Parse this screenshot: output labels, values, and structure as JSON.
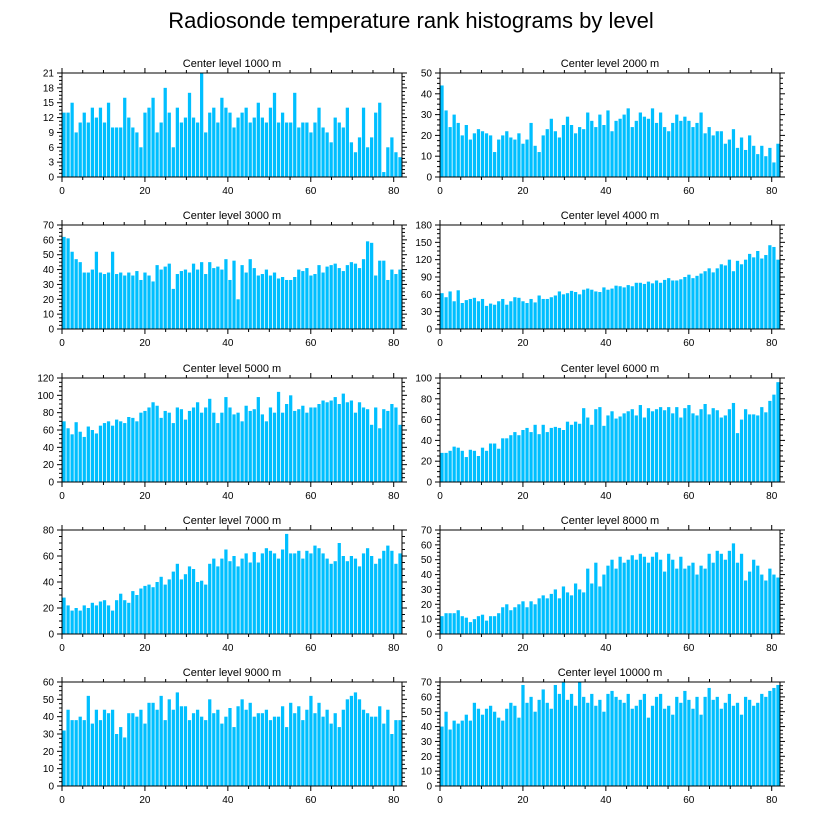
{
  "page_title": "Radiosonde temperature rank histograms by level",
  "colors": {
    "bar": "#00bfff",
    "axis": "#000000",
    "background": "#ffffff"
  },
  "chart_data": [
    {
      "type": "bar",
      "title": "Center level 1000 m",
      "xlabel": "",
      "ylabel": "",
      "xlim": [
        0,
        82
      ],
      "xticks": [
        0,
        20,
        40,
        60,
        80
      ],
      "ylim": [
        0,
        21
      ],
      "yticks": [
        0,
        3,
        6,
        9,
        12,
        15,
        18,
        21
      ],
      "values": [
        13,
        13,
        15,
        9,
        11,
        13,
        11,
        14,
        12,
        14,
        11,
        15,
        10,
        10,
        10,
        16,
        12,
        10,
        9,
        6,
        13,
        14,
        16,
        9,
        11,
        18,
        13,
        6,
        14,
        11,
        12,
        17,
        12,
        11,
        21,
        9,
        13,
        14,
        11,
        16,
        14,
        13,
        10,
        12,
        13,
        14,
        11,
        12,
        15,
        12,
        11,
        14,
        17,
        11,
        13,
        11,
        11,
        17,
        10,
        11,
        11,
        9,
        11,
        14,
        10,
        9,
        7,
        12,
        11,
        10,
        14,
        7,
        5,
        8,
        14,
        6,
        8,
        13,
        15,
        1,
        6,
        8,
        5,
        4
      ]
    },
    {
      "type": "bar",
      "title": "Center level 2000 m",
      "xlabel": "",
      "ylabel": "",
      "xlim": [
        0,
        82
      ],
      "xticks": [
        0,
        20,
        40,
        60,
        80
      ],
      "ylim": [
        0,
        50
      ],
      "yticks": [
        0,
        10,
        20,
        30,
        40,
        50
      ],
      "values": [
        44,
        32,
        24,
        30,
        26,
        20,
        25,
        18,
        21,
        23,
        22,
        21,
        20,
        12,
        18,
        20,
        22,
        19,
        18,
        21,
        16,
        18,
        26,
        15,
        12,
        20,
        23,
        28,
        22,
        19,
        25,
        29,
        25,
        21,
        24,
        23,
        31,
        27,
        24,
        30,
        25,
        32,
        22,
        27,
        28,
        30,
        33,
        24,
        27,
        31,
        29,
        28,
        33,
        26,
        31,
        24,
        22,
        26,
        30,
        27,
        29,
        27,
        24,
        26,
        31,
        21,
        24,
        20,
        22,
        22,
        16,
        18,
        23,
        14,
        19,
        13,
        20,
        15,
        11,
        15,
        10,
        14,
        7,
        16
      ]
    },
    {
      "type": "bar",
      "title": "Center level 3000 m",
      "xlabel": "",
      "ylabel": "",
      "xlim": [
        0,
        82
      ],
      "xticks": [
        0,
        20,
        40,
        60,
        80
      ],
      "ylim": [
        0,
        70
      ],
      "yticks": [
        0,
        10,
        20,
        30,
        40,
        50,
        60,
        70
      ],
      "values": [
        62,
        61,
        52,
        47,
        45,
        38,
        38,
        40,
        52,
        38,
        37,
        38,
        52,
        37,
        38,
        36,
        38,
        36,
        39,
        33,
        38,
        36,
        32,
        43,
        40,
        42,
        44,
        27,
        37,
        39,
        40,
        38,
        44,
        40,
        45,
        37,
        45,
        41,
        42,
        40,
        47,
        33,
        46,
        20,
        43,
        38,
        47,
        41,
        36,
        37,
        40,
        36,
        38,
        34,
        35,
        33,
        33,
        35,
        40,
        39,
        41,
        36,
        37,
        43,
        38,
        42,
        43,
        44,
        41,
        39,
        43,
        45,
        44,
        41,
        47,
        59,
        58,
        36,
        46,
        46,
        33,
        40,
        37,
        40
      ]
    },
    {
      "type": "bar",
      "title": "Center level 4000 m",
      "xlabel": "",
      "ylabel": "",
      "xlim": [
        0,
        82
      ],
      "xticks": [
        0,
        20,
        40,
        60,
        80
      ],
      "ylim": [
        0,
        180
      ],
      "yticks": [
        0,
        30,
        60,
        90,
        120,
        150,
        180
      ],
      "values": [
        62,
        55,
        65,
        48,
        67,
        45,
        50,
        52,
        54,
        48,
        52,
        40,
        44,
        42,
        48,
        52,
        42,
        48,
        55,
        54,
        48,
        45,
        52,
        46,
        58,
        52,
        52,
        55,
        58,
        65,
        60,
        62,
        66,
        64,
        60,
        68,
        70,
        68,
        65,
        64,
        72,
        68,
        70,
        75,
        74,
        72,
        76,
        74,
        80,
        80,
        78,
        82,
        79,
        84,
        80,
        85,
        88,
        84,
        84,
        86,
        90,
        94,
        88,
        92,
        96,
        100,
        105,
        98,
        105,
        112,
        110,
        120,
        100,
        118,
        112,
        120,
        130,
        124,
        135,
        122,
        128,
        145,
        142,
        120
      ]
    },
    {
      "type": "bar",
      "title": "Center level 5000 m",
      "xlabel": "",
      "ylabel": "",
      "xlim": [
        0,
        82
      ],
      "xticks": [
        0,
        20,
        40,
        60,
        80
      ],
      "ylim": [
        0,
        120
      ],
      "yticks": [
        0,
        20,
        40,
        60,
        80,
        100,
        120
      ],
      "values": [
        70,
        62,
        55,
        69,
        58,
        52,
        64,
        60,
        56,
        65,
        68,
        70,
        65,
        72,
        70,
        68,
        75,
        74,
        70,
        80,
        82,
        86,
        92,
        88,
        74,
        82,
        80,
        68,
        86,
        84,
        72,
        82,
        86,
        92,
        80,
        86,
        96,
        80,
        68,
        80,
        98,
        86,
        78,
        80,
        70,
        88,
        82,
        84,
        98,
        78,
        70,
        86,
        80,
        104,
        80,
        90,
        100,
        82,
        84,
        88,
        80,
        86,
        86,
        90,
        94,
        92,
        94,
        98,
        90,
        102,
        92,
        94,
        80,
        92,
        86,
        84,
        66,
        86,
        62,
        84,
        82,
        90,
        86,
        66
      ]
    },
    {
      "type": "bar",
      "title": "Center level 6000 m",
      "xlabel": "",
      "ylabel": "",
      "xlim": [
        0,
        82
      ],
      "xticks": [
        0,
        20,
        40,
        60,
        80
      ],
      "ylim": [
        0,
        100
      ],
      "yticks": [
        0,
        20,
        40,
        60,
        80,
        100
      ],
      "values": [
        28,
        28,
        30,
        34,
        33,
        30,
        24,
        31,
        30,
        25,
        33,
        30,
        37,
        37,
        32,
        42,
        42,
        45,
        48,
        45,
        50,
        52,
        48,
        55,
        46,
        55,
        48,
        52,
        53,
        52,
        50,
        58,
        55,
        58,
        56,
        71,
        62,
        55,
        70,
        72,
        54,
        64,
        68,
        61,
        63,
        66,
        68,
        70,
        64,
        74,
        62,
        71,
        68,
        70,
        72,
        69,
        72,
        66,
        72,
        62,
        71,
        74,
        66,
        64,
        70,
        75,
        65,
        71,
        69,
        62,
        64,
        70,
        76,
        47,
        60,
        70,
        65,
        65,
        64,
        72,
        67,
        78,
        84,
        96
      ]
    },
    {
      "type": "bar",
      "title": "Center level 7000 m",
      "xlabel": "",
      "ylabel": "",
      "xlim": [
        0,
        82
      ],
      "xticks": [
        0,
        20,
        40,
        60,
        80
      ],
      "ylim": [
        0,
        80
      ],
      "yticks": [
        0,
        20,
        40,
        60,
        80
      ],
      "values": [
        28,
        22,
        18,
        20,
        18,
        22,
        20,
        24,
        22,
        25,
        26,
        22,
        18,
        26,
        31,
        26,
        24,
        33,
        30,
        35,
        37,
        38,
        36,
        40,
        44,
        38,
        42,
        48,
        54,
        42,
        46,
        52,
        50,
        40,
        41,
        38,
        54,
        58,
        52,
        58,
        65,
        56,
        60,
        52,
        58,
        62,
        55,
        63,
        55,
        62,
        66,
        64,
        62,
        58,
        65,
        77,
        62,
        62,
        64,
        58,
        64,
        62,
        68,
        66,
        62,
        58,
        54,
        56,
        70,
        60,
        56,
        60,
        58,
        52,
        62,
        66,
        60,
        54,
        58,
        64,
        68,
        64,
        54,
        62
      ]
    },
    {
      "type": "bar",
      "title": "Center level 8000 m",
      "xlabel": "",
      "ylabel": "",
      "xlim": [
        0,
        82
      ],
      "xticks": [
        0,
        20,
        40,
        60,
        80
      ],
      "ylim": [
        0,
        70
      ],
      "yticks": [
        0,
        10,
        20,
        30,
        40,
        50,
        60,
        70
      ],
      "values": [
        12,
        14,
        14,
        14,
        16,
        12,
        11,
        8,
        10,
        12,
        13,
        9,
        12,
        12,
        14,
        18,
        20,
        16,
        18,
        20,
        22,
        18,
        22,
        20,
        24,
        26,
        24,
        27,
        30,
        24,
        32,
        28,
        26,
        34,
        30,
        28,
        44,
        34,
        48,
        32,
        40,
        46,
        50,
        44,
        52,
        48,
        50,
        53,
        50,
        54,
        52,
        48,
        52,
        55,
        50,
        42,
        54,
        50,
        44,
        52,
        44,
        46,
        48,
        40,
        46,
        44,
        54,
        48,
        56,
        54,
        50,
        56,
        61,
        48,
        54,
        36,
        42,
        50,
        46,
        40,
        36,
        44,
        40,
        38
      ]
    },
    {
      "type": "bar",
      "title": "Center level 9000 m",
      "xlabel": "",
      "ylabel": "",
      "xlim": [
        0,
        82
      ],
      "xticks": [
        0,
        20,
        40,
        60,
        80
      ],
      "ylim": [
        0,
        60
      ],
      "yticks": [
        0,
        10,
        20,
        30,
        40,
        50,
        60
      ],
      "values": [
        32,
        44,
        38,
        38,
        40,
        38,
        52,
        36,
        44,
        38,
        44,
        42,
        44,
        30,
        34,
        28,
        42,
        42,
        40,
        44,
        36,
        48,
        48,
        44,
        52,
        38,
        50,
        44,
        54,
        46,
        46,
        38,
        42,
        44,
        40,
        38,
        50,
        42,
        44,
        36,
        40,
        45,
        34,
        46,
        50,
        44,
        48,
        40,
        42,
        42,
        44,
        38,
        40,
        40,
        46,
        34,
        48,
        42,
        46,
        38,
        44,
        52,
        42,
        48,
        40,
        44,
        36,
        42,
        34,
        44,
        50,
        52,
        54,
        50,
        44,
        42,
        40,
        40,
        46,
        36,
        44,
        30,
        38,
        38
      ]
    },
    {
      "type": "bar",
      "title": "Center level 10000 m",
      "xlabel": "",
      "ylabel": "",
      "xlim": [
        0,
        82
      ],
      "xticks": [
        0,
        20,
        40,
        60,
        80
      ],
      "ylim": [
        0,
        70
      ],
      "yticks": [
        0,
        10,
        20,
        30,
        40,
        50,
        60,
        70
      ],
      "values": [
        40,
        50,
        38,
        44,
        42,
        44,
        48,
        44,
        56,
        52,
        48,
        52,
        54,
        50,
        46,
        44,
        52,
        56,
        54,
        46,
        68,
        56,
        60,
        50,
        58,
        65,
        56,
        52,
        68,
        62,
        70,
        58,
        62,
        54,
        70,
        60,
        56,
        62,
        54,
        58,
        50,
        62,
        64,
        60,
        58,
        56,
        62,
        52,
        54,
        58,
        62,
        46,
        54,
        60,
        62,
        52,
        54,
        48,
        60,
        56,
        64,
        58,
        52,
        60,
        48,
        60,
        66,
        58,
        60,
        52,
        56,
        62,
        54,
        56,
        48,
        60,
        58,
        54,
        56,
        62,
        60,
        64,
        66,
        68
      ]
    }
  ]
}
